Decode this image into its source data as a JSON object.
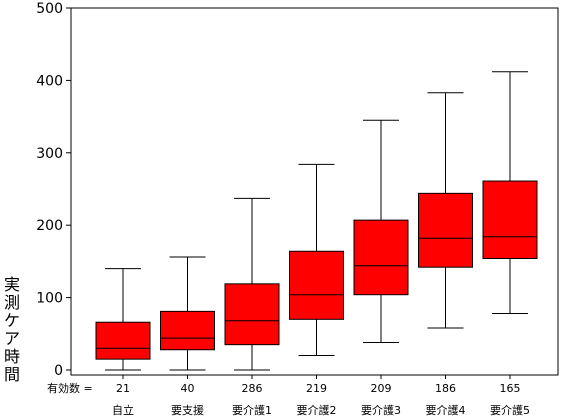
{
  "chart_data": {
    "type": "boxplot",
    "ylabel": "実測ケア時間",
    "ylim": [
      0,
      500
    ],
    "yticks": [
      0,
      100,
      200,
      300,
      400,
      500
    ],
    "n_label": "有効数 =",
    "categories": [
      "自立",
      "要支援",
      "要介護1",
      "要介護2",
      "要介護3",
      "要介護4",
      "要介護5"
    ],
    "counts": [
      "21",
      "40",
      "286",
      "219",
      "209",
      "186",
      "165"
    ],
    "boxes": [
      {
        "min": 0,
        "q1": 15,
        "median": 30,
        "q3": 66,
        "max": 140
      },
      {
        "min": 0,
        "q1": 28,
        "median": 44,
        "q3": 81,
        "max": 156
      },
      {
        "min": 0,
        "q1": 35,
        "median": 68,
        "q3": 119,
        "max": 237
      },
      {
        "min": 20,
        "q1": 70,
        "median": 104,
        "q3": 164,
        "max": 284
      },
      {
        "min": 38,
        "q1": 104,
        "median": 144,
        "q3": 207,
        "max": 345
      },
      {
        "min": 58,
        "q1": 142,
        "median": 182,
        "q3": 244,
        "max": 383
      },
      {
        "min": 78,
        "q1": 154,
        "median": 184,
        "q3": 261,
        "max": 412
      }
    ],
    "box_color": "#ff0000",
    "grid": false
  }
}
